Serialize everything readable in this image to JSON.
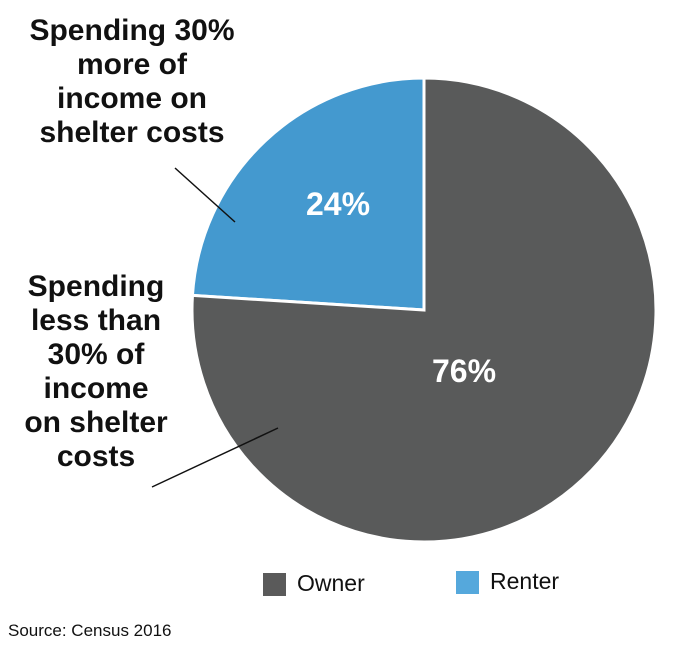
{
  "chart_data": {
    "type": "pie",
    "title": "",
    "slices": [
      {
        "label": "Spending 30% more of income on shelter costs",
        "value": 24,
        "value_label": "24%",
        "color": "#4499cf"
      },
      {
        "label": "Spending less than 30% of income on shelter costs",
        "value": 76,
        "value_label": "76%",
        "color": "#595a5a"
      }
    ],
    "legend": {
      "placement": "bottom",
      "entries": [
        {
          "label": "Owner",
          "color": "#5a5a5a"
        },
        {
          "label": "Renter",
          "color": "#55a8dc"
        }
      ]
    },
    "source": "Source: Census 2016"
  }
}
